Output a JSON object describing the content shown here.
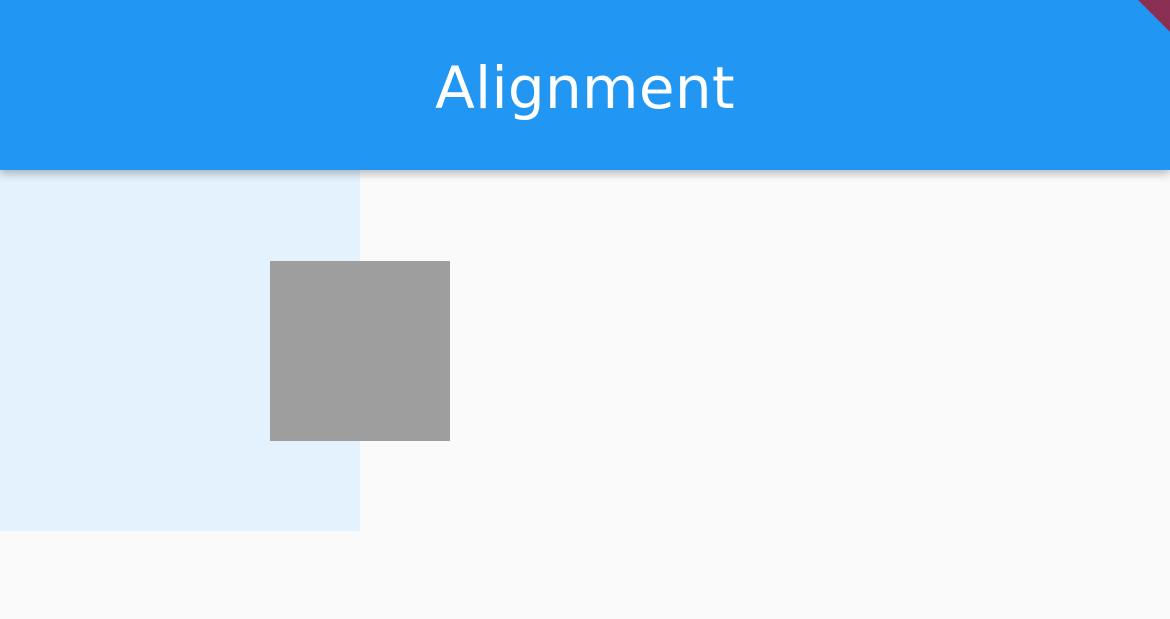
{
  "app_bar": {
    "title": "Alignment",
    "background_color": "#2196f3",
    "title_color": "#ffffff"
  },
  "debug_banner": {
    "color": "#8a2e54"
  },
  "content": {
    "background_color": "#fafafa",
    "container_color": "#e3f2fd",
    "aligned_box_color": "#9e9e9e"
  }
}
